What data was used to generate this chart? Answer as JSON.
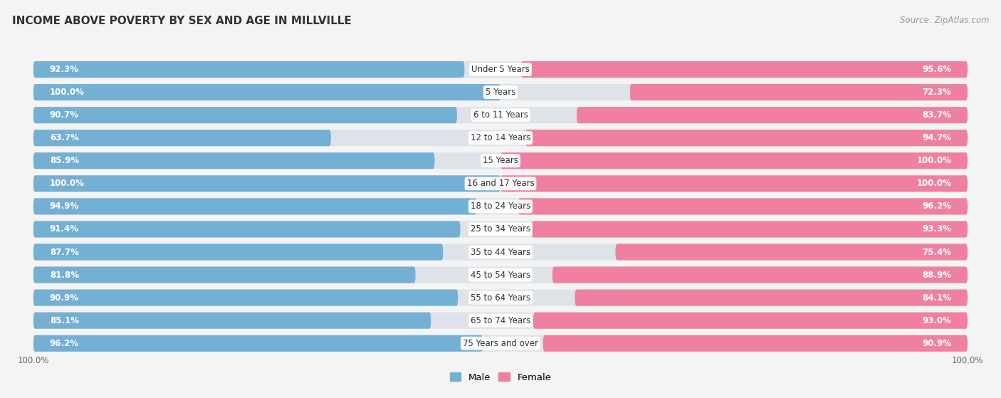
{
  "title": "INCOME ABOVE POVERTY BY SEX AND AGE IN MILLVILLE",
  "source": "Source: ZipAtlas.com",
  "categories": [
    "Under 5 Years",
    "5 Years",
    "6 to 11 Years",
    "12 to 14 Years",
    "15 Years",
    "16 and 17 Years",
    "18 to 24 Years",
    "25 to 34 Years",
    "35 to 44 Years",
    "45 to 54 Years",
    "55 to 64 Years",
    "65 to 74 Years",
    "75 Years and over"
  ],
  "male": [
    92.3,
    100.0,
    90.7,
    63.7,
    85.9,
    100.0,
    94.9,
    91.4,
    87.7,
    81.8,
    90.9,
    85.1,
    96.2
  ],
  "female": [
    95.6,
    72.3,
    83.7,
    94.7,
    100.0,
    100.0,
    96.2,
    93.3,
    75.4,
    88.9,
    84.1,
    93.0,
    90.9
  ],
  "male_color": "#74afd4",
  "female_color": "#f080a0",
  "bg_track_color": "#e0e5ea",
  "bg_color": "#f4f4f4",
  "label_color": "#333333",
  "value_color": "#ffffff",
  "axis_bottom_color": "#888888",
  "legend_male": "Male",
  "legend_female": "Female"
}
